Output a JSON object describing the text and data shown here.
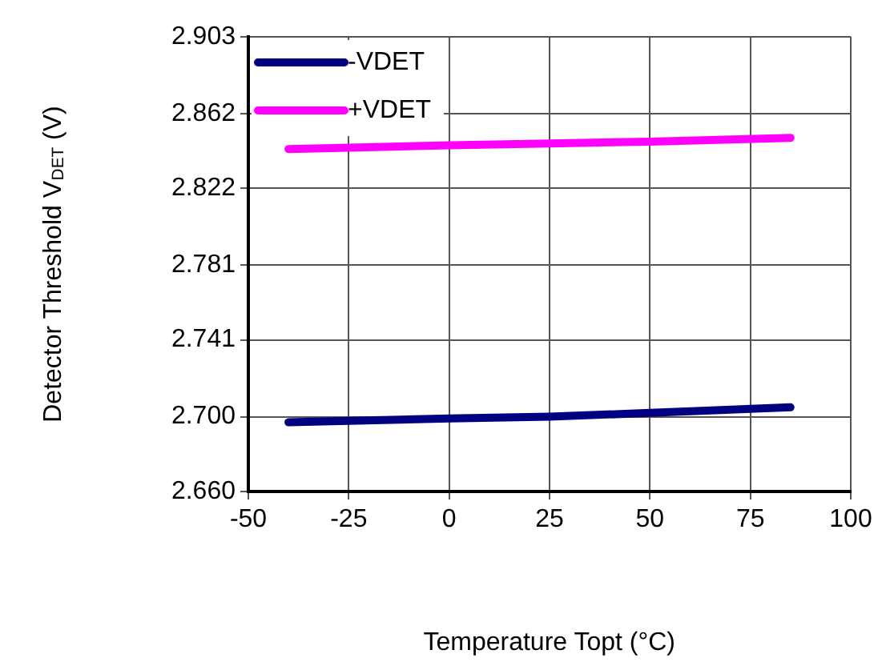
{
  "chart_data": {
    "type": "line",
    "xlabel": "Temperature Topt (°C)",
    "ylabel": "Detector Threshold V$_{DET}$ (V)",
    "x": [
      -40,
      0,
      25,
      50,
      85
    ],
    "series": [
      {
        "name": "-VDET",
        "color": "#000080",
        "values": [
          2.697,
          2.699,
          2.7,
          2.702,
          2.705
        ]
      },
      {
        "name": "+VDET",
        "color": "#ff00ff",
        "values": [
          2.843,
          2.845,
          2.846,
          2.847,
          2.849
        ]
      }
    ],
    "xlim": [
      -50,
      100
    ],
    "xticks": [
      -50,
      -25,
      0,
      25,
      50,
      75,
      100
    ],
    "ylim": [
      2.66,
      2.903
    ],
    "yticks": [
      {
        "value": 2.66,
        "label": "2.660"
      },
      {
        "value": 2.7,
        "label": "2.700"
      },
      2.741,
      2.781,
      2.822,
      2.862,
      2.903
    ],
    "grid": true,
    "legend": "top left",
    "marker": "none",
    "line_style": "solid"
  }
}
